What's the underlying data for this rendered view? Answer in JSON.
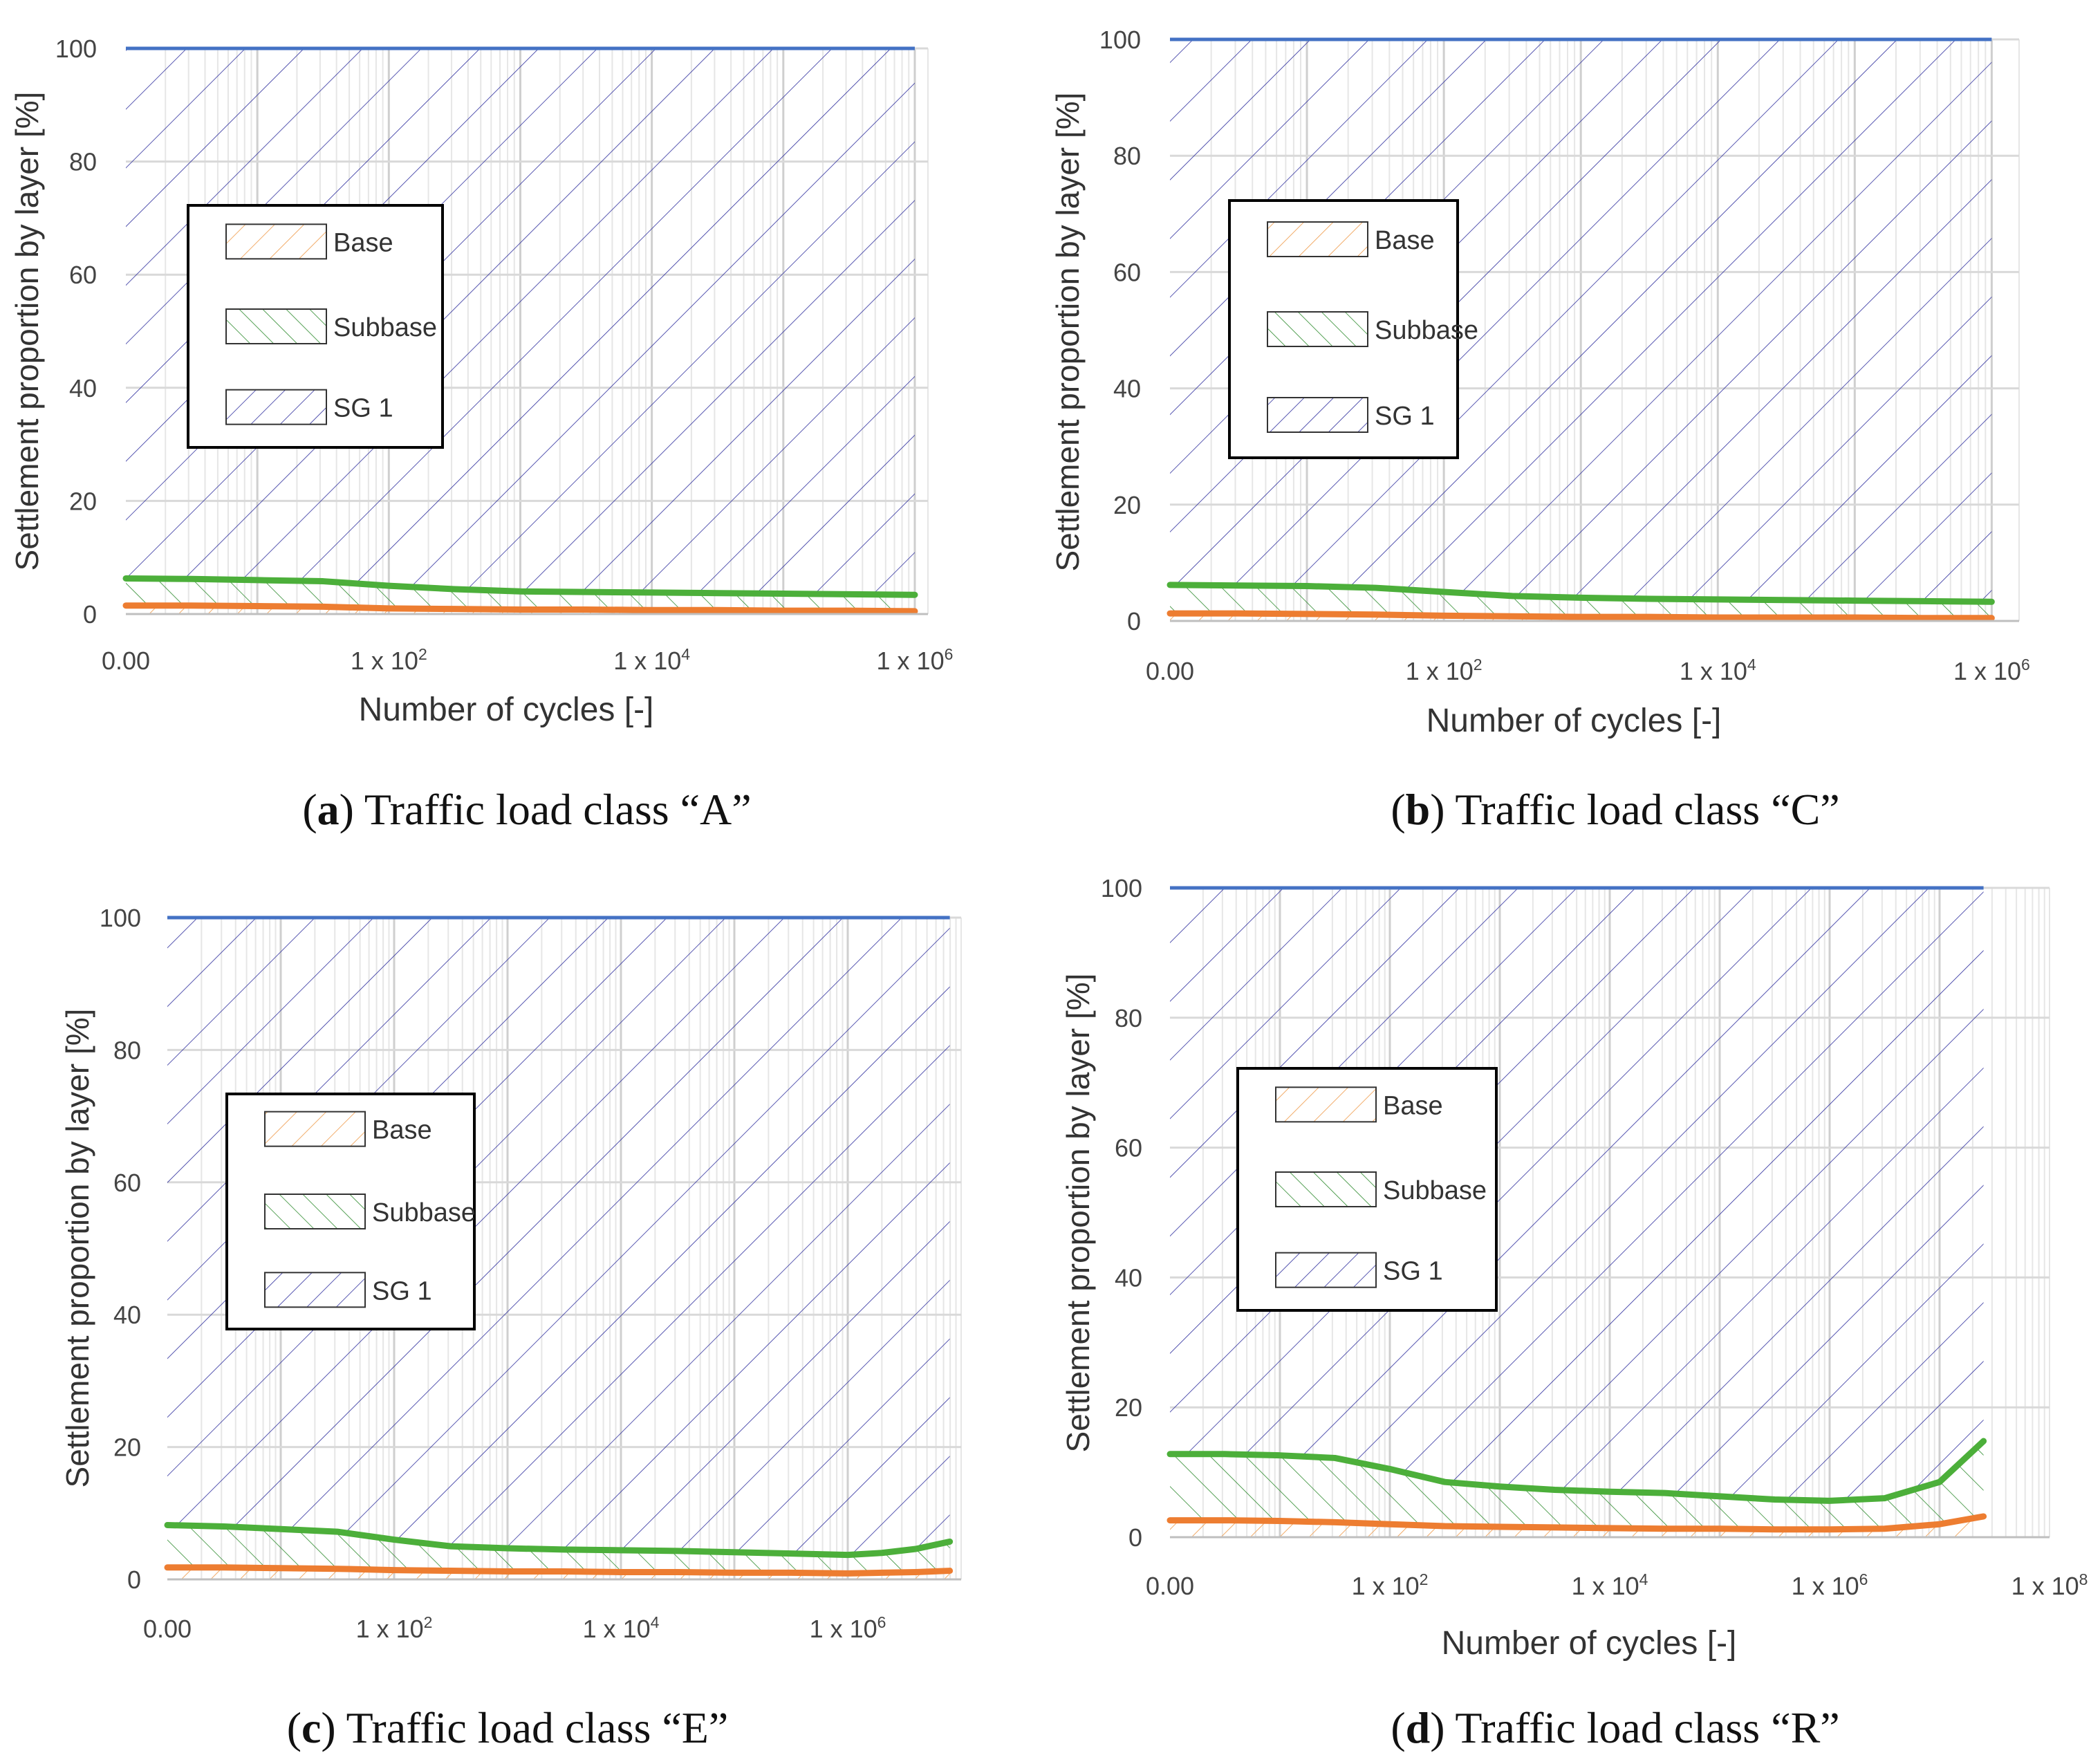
{
  "chart_data": [
    {
      "id": "a",
      "type": "area",
      "caption": {
        "letter": "a",
        "text": "Traffic load class “A”"
      },
      "xlabel": "Number of cycles [-]",
      "ylabel": "Settlement proportion by layer [%]",
      "x_scale": "log-decades",
      "x_ticks": [
        {
          "label": "0.00",
          "decade": 0
        },
        {
          "label": "1 x 10",
          "sup": "2",
          "decade": 2
        },
        {
          "label": "1 x 10",
          "sup": "4",
          "decade": 4
        },
        {
          "label": "1 x 10",
          "sup": "6",
          "decade": 6
        }
      ],
      "xlim": [
        0,
        6.1
      ],
      "ylim": [
        0,
        100
      ],
      "y_ticks": [
        0,
        20,
        40,
        60,
        80,
        100
      ],
      "legend": [
        "Base",
        "Subbase",
        "SG 1"
      ],
      "x": [
        0,
        0.5,
        1,
        1.5,
        2,
        2.5,
        3,
        3.5,
        4,
        4.5,
        5,
        5.5,
        6
      ],
      "series": [
        {
          "name": "Base",
          "values": [
            1.5,
            1.5,
            1.4,
            1.3,
            1.0,
            0.9,
            0.8,
            0.8,
            0.7,
            0.7,
            0.6,
            0.6,
            0.5
          ]
        },
        {
          "name": "Subbase",
          "values": [
            6.3,
            6.2,
            6.0,
            5.8,
            5.0,
            4.4,
            4.0,
            3.9,
            3.8,
            3.7,
            3.6,
            3.5,
            3.4
          ]
        },
        {
          "name": "SG 1",
          "values": [
            100,
            100,
            100,
            100,
            100,
            100,
            100,
            100,
            100,
            100,
            100,
            100,
            100
          ]
        }
      ]
    },
    {
      "id": "b",
      "type": "area",
      "caption": {
        "letter": "b",
        "text": "Traffic load class “C”"
      },
      "xlabel": "Number of cycles [-]",
      "ylabel": "Settlement proportion by layer [%]",
      "x_scale": "log-decades",
      "x_ticks": [
        {
          "label": "0.00",
          "decade": 0
        },
        {
          "label": "1 x 10",
          "sup": "2",
          "decade": 2
        },
        {
          "label": "1 x 10",
          "sup": "4",
          "decade": 4
        },
        {
          "label": "1 x 10",
          "sup": "6",
          "decade": 6
        }
      ],
      "xlim": [
        0,
        6.2
      ],
      "ylim": [
        0,
        100
      ],
      "y_ticks": [
        0,
        20,
        40,
        60,
        80,
        100
      ],
      "legend": [
        "Base",
        "Subbase",
        "SG 1"
      ],
      "x": [
        0,
        0.5,
        1,
        1.5,
        2,
        2.5,
        3,
        3.5,
        4,
        4.5,
        5,
        5.5,
        6
      ],
      "series": [
        {
          "name": "Base",
          "values": [
            1.3,
            1.3,
            1.2,
            1.1,
            0.9,
            0.8,
            0.7,
            0.7,
            0.6,
            0.6,
            0.6,
            0.5,
            0.5
          ]
        },
        {
          "name": "Subbase",
          "values": [
            6.2,
            6.1,
            6.0,
            5.7,
            5.0,
            4.3,
            4.0,
            3.8,
            3.7,
            3.6,
            3.5,
            3.4,
            3.3
          ]
        },
        {
          "name": "SG 1",
          "values": [
            100,
            100,
            100,
            100,
            100,
            100,
            100,
            100,
            100,
            100,
            100,
            100,
            100
          ]
        }
      ]
    },
    {
      "id": "c",
      "type": "area",
      "caption": {
        "letter": "c",
        "text": "Traffic load class “E”"
      },
      "xlabel": "",
      "ylabel": "Settlement proportion by layer [%]",
      "x_scale": "log-decades",
      "x_ticks": [
        {
          "label": "0.00",
          "decade": 0
        },
        {
          "label": "1 x 10",
          "sup": "2",
          "decade": 2
        },
        {
          "label": "1 x 10",
          "sup": "4",
          "decade": 4
        },
        {
          "label": "1 x 10",
          "sup": "6",
          "decade": 6
        }
      ],
      "xlim": [
        0,
        7
      ],
      "ylim": [
        0,
        100
      ],
      "y_ticks": [
        0,
        20,
        40,
        60,
        80,
        100
      ],
      "legend": [
        "Base",
        "Subbase",
        "SG 1"
      ],
      "x": [
        0,
        0.5,
        1,
        1.5,
        2,
        2.5,
        3,
        3.5,
        4,
        4.5,
        5,
        5.5,
        6,
        6.3,
        6.6,
        6.9
      ],
      "series": [
        {
          "name": "Base",
          "values": [
            1.8,
            1.8,
            1.7,
            1.6,
            1.4,
            1.3,
            1.2,
            1.2,
            1.1,
            1.1,
            1.0,
            1.0,
            0.9,
            1.0,
            1.1,
            1.3
          ]
        },
        {
          "name": "Subbase",
          "values": [
            8.2,
            8.0,
            7.6,
            7.2,
            6.0,
            5.0,
            4.7,
            4.5,
            4.4,
            4.3,
            4.1,
            3.9,
            3.7,
            4.0,
            4.6,
            5.7
          ]
        },
        {
          "name": "SG 1",
          "values": [
            100,
            100,
            100,
            100,
            100,
            100,
            100,
            100,
            100,
            100,
            100,
            100,
            100,
            100,
            100,
            100
          ]
        }
      ]
    },
    {
      "id": "d",
      "type": "area",
      "caption": {
        "letter": "d",
        "text": "Traffic load class “R”"
      },
      "xlabel": "Number of cycles [-]",
      "ylabel": "Settlement proportion by layer [%]",
      "x_scale": "log-decades",
      "x_ticks": [
        {
          "label": "0.00",
          "decade": 0
        },
        {
          "label": "1 x 10",
          "sup": "2",
          "decade": 2
        },
        {
          "label": "1 x 10",
          "sup": "4",
          "decade": 4
        },
        {
          "label": "1 x 10",
          "sup": "6",
          "decade": 6
        },
        {
          "label": "1 x 10",
          "sup": "8",
          "decade": 8
        }
      ],
      "xlim": [
        0,
        8
      ],
      "ylim": [
        0,
        100
      ],
      "y_ticks": [
        0,
        20,
        40,
        60,
        80,
        100
      ],
      "legend": [
        "Base",
        "Subbase",
        "SG 1"
      ],
      "x": [
        0,
        0.5,
        1,
        1.5,
        2,
        2.5,
        3,
        3.5,
        4,
        4.5,
        5,
        5.5,
        6,
        6.5,
        7,
        7.4
      ],
      "series": [
        {
          "name": "Base",
          "values": [
            2.6,
            2.6,
            2.5,
            2.3,
            2.0,
            1.7,
            1.6,
            1.5,
            1.4,
            1.3,
            1.3,
            1.2,
            1.2,
            1.3,
            2.0,
            3.2
          ]
        },
        {
          "name": "Subbase",
          "values": [
            12.8,
            12.8,
            12.6,
            12.2,
            10.5,
            8.5,
            7.8,
            7.3,
            7.0,
            6.8,
            6.3,
            5.8,
            5.6,
            6.0,
            8.5,
            14.8
          ]
        },
        {
          "name": "SG 1",
          "values": [
            100,
            100,
            100,
            100,
            100,
            100,
            100,
            100,
            100,
            100,
            100,
            100,
            100,
            100,
            100,
            100
          ]
        }
      ]
    }
  ],
  "colors": {
    "base": "#ED7D31",
    "subbase": "#4CAF3A",
    "sg1": "#4472C4",
    "hatch_sg1": "#2E2E9E",
    "hatch_subbase": "#2E8B2E",
    "hatch_base": "#F0A35A",
    "grid": "#D9D9D9",
    "axis": "#BFBFBF"
  }
}
